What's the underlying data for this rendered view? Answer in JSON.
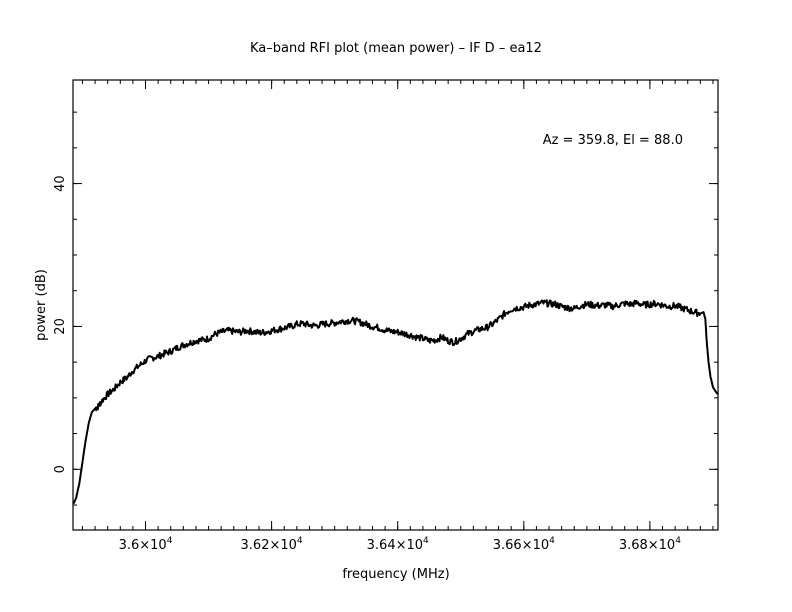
{
  "chart_data": {
    "type": "line",
    "title": "Ka–band RFI plot (mean power) – IF D – ea12",
    "xlabel": "frequency (MHz)",
    "ylabel": "power (dB)",
    "annotation": "Az = 359.8, El = 88.0",
    "xlim": [
      35885,
      36908
    ],
    "ylim": [
      -8.5,
      54.5
    ],
    "x_ticks": [
      {
        "value": 36000,
        "mantissa": "3.6",
        "exp": "4"
      },
      {
        "value": 36200,
        "mantissa": "3.62",
        "exp": "4"
      },
      {
        "value": 36400,
        "mantissa": "3.64",
        "exp": "4"
      },
      {
        "value": 36600,
        "mantissa": "3.66",
        "exp": "4"
      },
      {
        "value": 36800,
        "mantissa": "3.68",
        "exp": "4"
      }
    ],
    "x_minor_step": 20,
    "y_ticks": [
      {
        "value": 0,
        "label": "0"
      },
      {
        "value": 20,
        "label": "20"
      },
      {
        "value": 40,
        "label": "40"
      }
    ],
    "y_minor_step": 5,
    "line_color": "#000000",
    "series": [
      {
        "x": [
          35886,
          35890,
          35895,
          35900,
          35905,
          35910,
          35915,
          35920,
          35925,
          35930,
          35940,
          35950,
          35960,
          35970,
          35980,
          35990,
          36000,
          36010,
          36020,
          36030,
          36040,
          36050,
          36060,
          36070,
          36080,
          36090,
          36100,
          36110,
          36120,
          36130,
          36140,
          36150,
          36160,
          36170,
          36180,
          36190,
          36200,
          36210,
          36220,
          36230,
          36240,
          36250,
          36260,
          36270,
          36280,
          36290,
          36300,
          36310,
          36320,
          36330,
          36340,
          36350,
          36360,
          36370,
          36380,
          36390,
          36400,
          36410,
          36420,
          36430,
          36440,
          36450,
          36460,
          36470,
          36480,
          36490,
          36500,
          36510,
          36520,
          36530,
          36540,
          36550,
          36560,
          36570,
          36580,
          36590,
          36600,
          36610,
          36620,
          36630,
          36640,
          36650,
          36660,
          36670,
          36680,
          36690,
          36700,
          36710,
          36720,
          36730,
          36740,
          36750,
          36760,
          36770,
          36780,
          36790,
          36800,
          36810,
          36820,
          36830,
          36840,
          36850,
          36860,
          36870,
          36880,
          36885,
          36888,
          36890,
          36893,
          36896,
          36900,
          36905,
          36908
        ],
        "y": [
          -4.8,
          -4.0,
          -2.0,
          1.0,
          4.0,
          6.5,
          8.0,
          8.5,
          8.8,
          9.5,
          10.5,
          11.2,
          12.2,
          12.8,
          13.8,
          14.5,
          15.2,
          15.6,
          15.8,
          16.2,
          16.5,
          17.0,
          17.4,
          17.7,
          18.0,
          18.1,
          18.3,
          18.9,
          19.2,
          19.4,
          19.3,
          19.2,
          19.4,
          19.3,
          19.1,
          19.2,
          19.4,
          19.6,
          19.8,
          20.0,
          20.3,
          20.4,
          20.2,
          20.1,
          20.3,
          20.4,
          20.5,
          20.7,
          20.8,
          20.8,
          20.6,
          20.3,
          20.0,
          19.8,
          19.5,
          19.3,
          19.2,
          19.0,
          18.8,
          18.5,
          18.3,
          18.0,
          18.1,
          18.5,
          18.0,
          17.8,
          18.3,
          18.9,
          19.3,
          19.6,
          19.8,
          20.3,
          21.0,
          21.8,
          22.4,
          22.6,
          22.7,
          23.0,
          23.1,
          23.3,
          23.2,
          23.1,
          22.8,
          22.6,
          22.5,
          22.9,
          23.1,
          23.0,
          22.9,
          23.0,
          22.8,
          23.0,
          23.2,
          23.1,
          23.3,
          23.0,
          23.1,
          23.2,
          23.0,
          22.8,
          22.9,
          22.6,
          22.3,
          22.0,
          21.8,
          22.0,
          21.0,
          18.0,
          15.0,
          13.0,
          11.5,
          10.8,
          10.5
        ]
      }
    ]
  }
}
